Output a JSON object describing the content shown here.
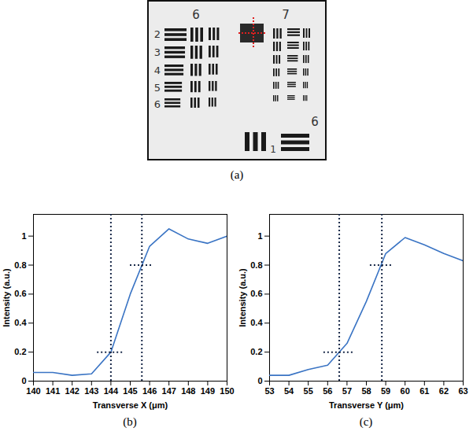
{
  "chart_data": [
    {
      "type": "line",
      "caption": "(b)",
      "color": "#3a74c4",
      "x_label": "Transverse X (μm)",
      "y_label": "Intensity (a.u.)",
      "x": [
        140,
        141,
        142,
        143,
        144,
        145,
        146,
        147,
        148,
        149,
        150
      ],
      "values": [
        0.06,
        0.06,
        0.04,
        0.05,
        0.2,
        0.6,
        0.93,
        1.05,
        0.98,
        0.95,
        1.0
      ],
      "xlim": [
        140,
        150
      ],
      "xticks": [
        140,
        141,
        142,
        143,
        144,
        145,
        146,
        147,
        148,
        149,
        150
      ],
      "ylim": [
        0,
        1.15
      ],
      "yticks": [
        0,
        0.2,
        0.4,
        0.6,
        0.8,
        1
      ],
      "vlines": [
        144,
        145.6
      ],
      "hlines": [
        {
          "y": 0.2,
          "x": [
            143.3,
            144.7
          ]
        },
        {
          "y": 0.8,
          "x": [
            145.0,
            146.2
          ]
        }
      ]
    },
    {
      "type": "line",
      "caption": "(c)",
      "color": "#3a74c4",
      "x_label": "Transverse Y (μm)",
      "y_label": "Intensity (a.u.)",
      "x": [
        53,
        54,
        55,
        56,
        57,
        58,
        59,
        60,
        61,
        62,
        63
      ],
      "values": [
        0.04,
        0.04,
        0.08,
        0.11,
        0.26,
        0.55,
        0.88,
        0.99,
        0.94,
        0.88,
        0.83
      ],
      "xlim": [
        53,
        63
      ],
      "xticks": [
        53,
        54,
        55,
        56,
        57,
        58,
        59,
        60,
        61,
        62,
        63
      ],
      "ylim": [
        0,
        1.15
      ],
      "yticks": [
        0,
        0.2,
        0.4,
        0.6,
        0.8,
        1
      ],
      "vlines": [
        56.6,
        58.8
      ],
      "hlines": [
        {
          "y": 0.2,
          "x": [
            55.8,
            57.4
          ]
        },
        {
          "y": 0.8,
          "x": [
            58.2,
            59.4
          ]
        }
      ]
    }
  ],
  "target": {
    "caption": "(a)",
    "group_top_left": "6",
    "group_top_right": "7",
    "elements": [
      "2",
      "3",
      "4",
      "5",
      "6"
    ],
    "group_bottom_right": "6",
    "element_bottom_right": "1"
  }
}
